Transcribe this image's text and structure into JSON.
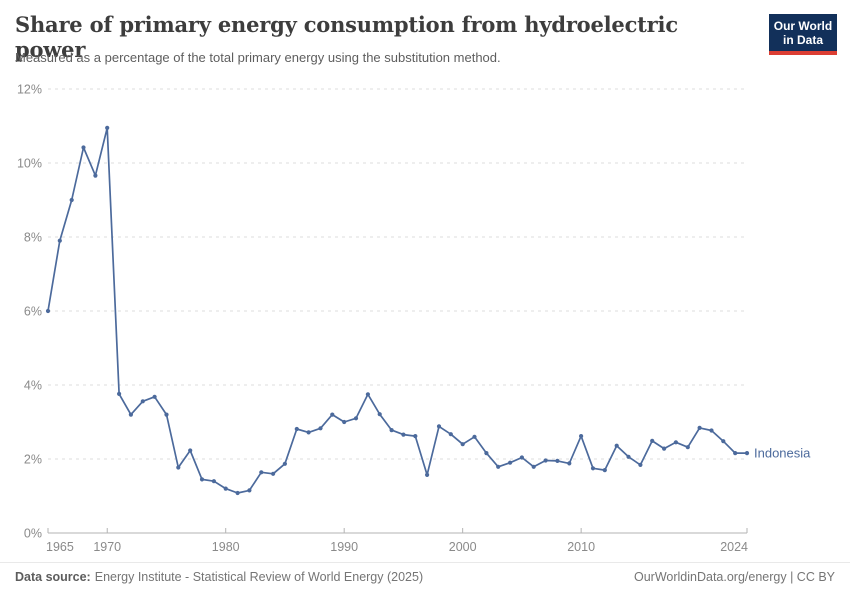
{
  "header": {
    "title": "Share of primary energy consumption from hydroelectric power",
    "subtitle": "Measured as a percentage of the total primary energy using the substitution method.",
    "logo": {
      "line1": "Our World",
      "line2": "in Data",
      "bg_color": "#12305a",
      "accent_color": "#dc3e33"
    }
  },
  "chart_data": {
    "type": "line",
    "title": "Share of primary energy consumption from hydroelectric power",
    "xlabel": "",
    "ylabel": "",
    "grid": "horizontal-dashed",
    "legend_position": "end-of-line",
    "xlim": [
      1965,
      2024
    ],
    "ylim": [
      0,
      12
    ],
    "x_ticks": [
      1965,
      1970,
      1980,
      1990,
      2000,
      2010,
      2024
    ],
    "y_ticks": [
      0,
      2,
      4,
      6,
      8,
      10,
      12
    ],
    "y_suffix": "%",
    "x": [
      1965,
      1966,
      1967,
      1968,
      1969,
      1970,
      1971,
      1972,
      1973,
      1974,
      1975,
      1976,
      1977,
      1978,
      1979,
      1980,
      1981,
      1982,
      1983,
      1984,
      1985,
      1986,
      1987,
      1988,
      1989,
      1990,
      1991,
      1992,
      1993,
      1994,
      1995,
      1996,
      1997,
      1998,
      1999,
      2000,
      2001,
      2002,
      2003,
      2004,
      2005,
      2006,
      2007,
      2008,
      2009,
      2010,
      2011,
      2012,
      2013,
      2014,
      2015,
      2016,
      2017,
      2018,
      2019,
      2020,
      2021,
      2022,
      2023,
      2024
    ],
    "series": [
      {
        "name": "Indonesia",
        "color": "#4c6a9c",
        "values": [
          6.0,
          7.9,
          9.0,
          10.42,
          9.66,
          10.95,
          3.76,
          3.2,
          3.56,
          3.68,
          3.2,
          1.77,
          2.23,
          1.45,
          1.4,
          1.2,
          1.08,
          1.15,
          1.64,
          1.6,
          1.87,
          2.81,
          2.72,
          2.83,
          3.2,
          3.0,
          3.1,
          3.75,
          3.21,
          2.78,
          2.66,
          2.62,
          1.57,
          2.88,
          2.67,
          2.4,
          2.6,
          2.16,
          1.79,
          1.9,
          2.04,
          1.79,
          1.96,
          1.95,
          1.88,
          2.62,
          1.75,
          1.7,
          2.36,
          2.06,
          1.84,
          2.49,
          2.28,
          2.45,
          2.32,
          2.84,
          2.77,
          2.48,
          2.16,
          2.16
        ]
      }
    ]
  },
  "footer": {
    "data_source_label": "Data source:",
    "data_source": "Energy Institute - Statistical Review of World Energy (2025)",
    "link": "OurWorldinData.org/energy | CC BY"
  }
}
